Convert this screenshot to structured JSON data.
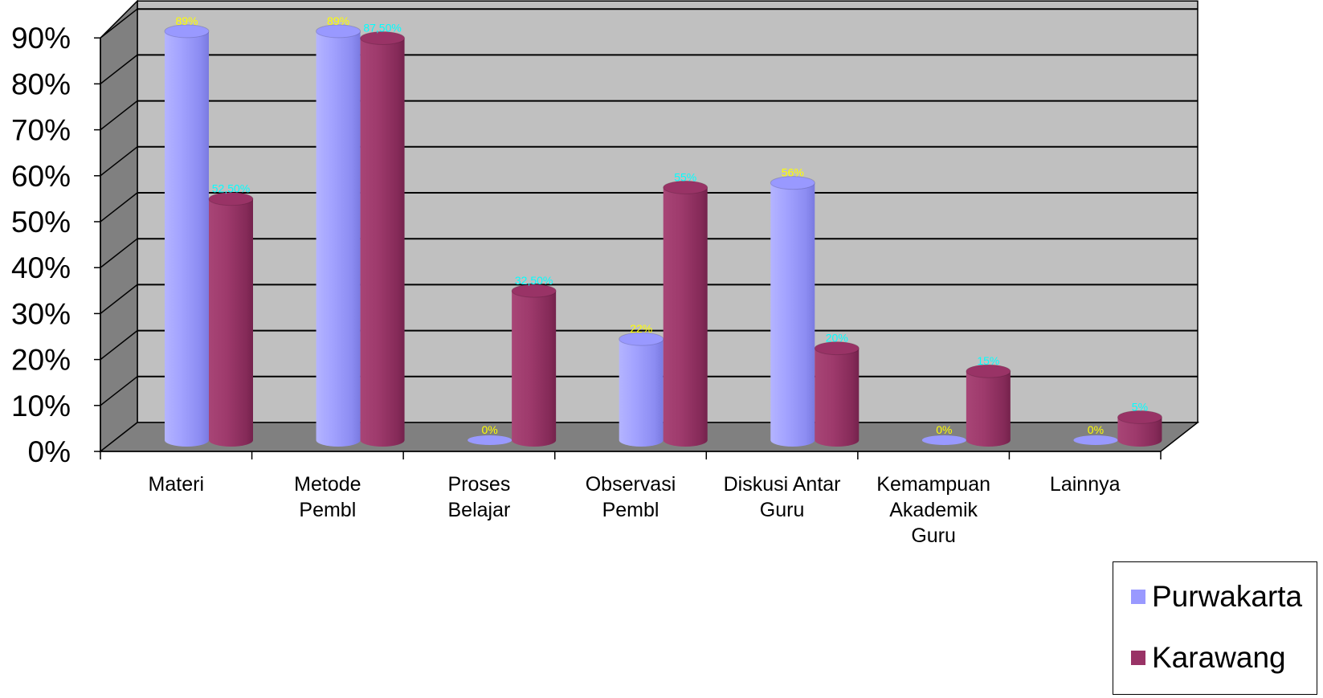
{
  "chart_data": {
    "type": "bar",
    "style": "3d-cylinder",
    "categories": [
      [
        "Materi"
      ],
      [
        "Metode",
        "Pembl"
      ],
      [
        "Proses",
        "Belajar"
      ],
      [
        "Observasi",
        "Pembl"
      ],
      [
        "Diskusi Antar",
        "Guru"
      ],
      [
        "Kemampuan",
        "Akademik",
        "Guru"
      ],
      [
        "Lainnya"
      ]
    ],
    "series": [
      {
        "name": "Purwakarta",
        "color": "#9999ff",
        "values": [
          89,
          89,
          0,
          22,
          56,
          0,
          0
        ],
        "labels": [
          "89%",
          "89%",
          "0%",
          "22%",
          "56%",
          "0%",
          "0%"
        ],
        "label_color": "#ffff00"
      },
      {
        "name": "Karawang",
        "color": "#993366",
        "values": [
          52.5,
          87.5,
          32.5,
          55,
          20,
          15,
          5
        ],
        "labels": [
          "52,50%",
          "87,50%",
          "32,50%",
          "55%",
          "20%",
          "15%",
          "5%"
        ],
        "label_color": "#00ffff"
      }
    ],
    "ylim": [
      0,
      90
    ],
    "yticks": [
      "0%",
      "10%",
      "20%",
      "30%",
      "40%",
      "50%",
      "60%",
      "70%",
      "80%",
      "90%"
    ],
    "grid": true,
    "legend_position": "bottom-right",
    "colors": {
      "wall": "#c0c0c0",
      "side_wall": "#808080",
      "floor": "#808080"
    }
  },
  "legend": {
    "items": [
      "Purwakarta",
      "Karawang"
    ]
  }
}
